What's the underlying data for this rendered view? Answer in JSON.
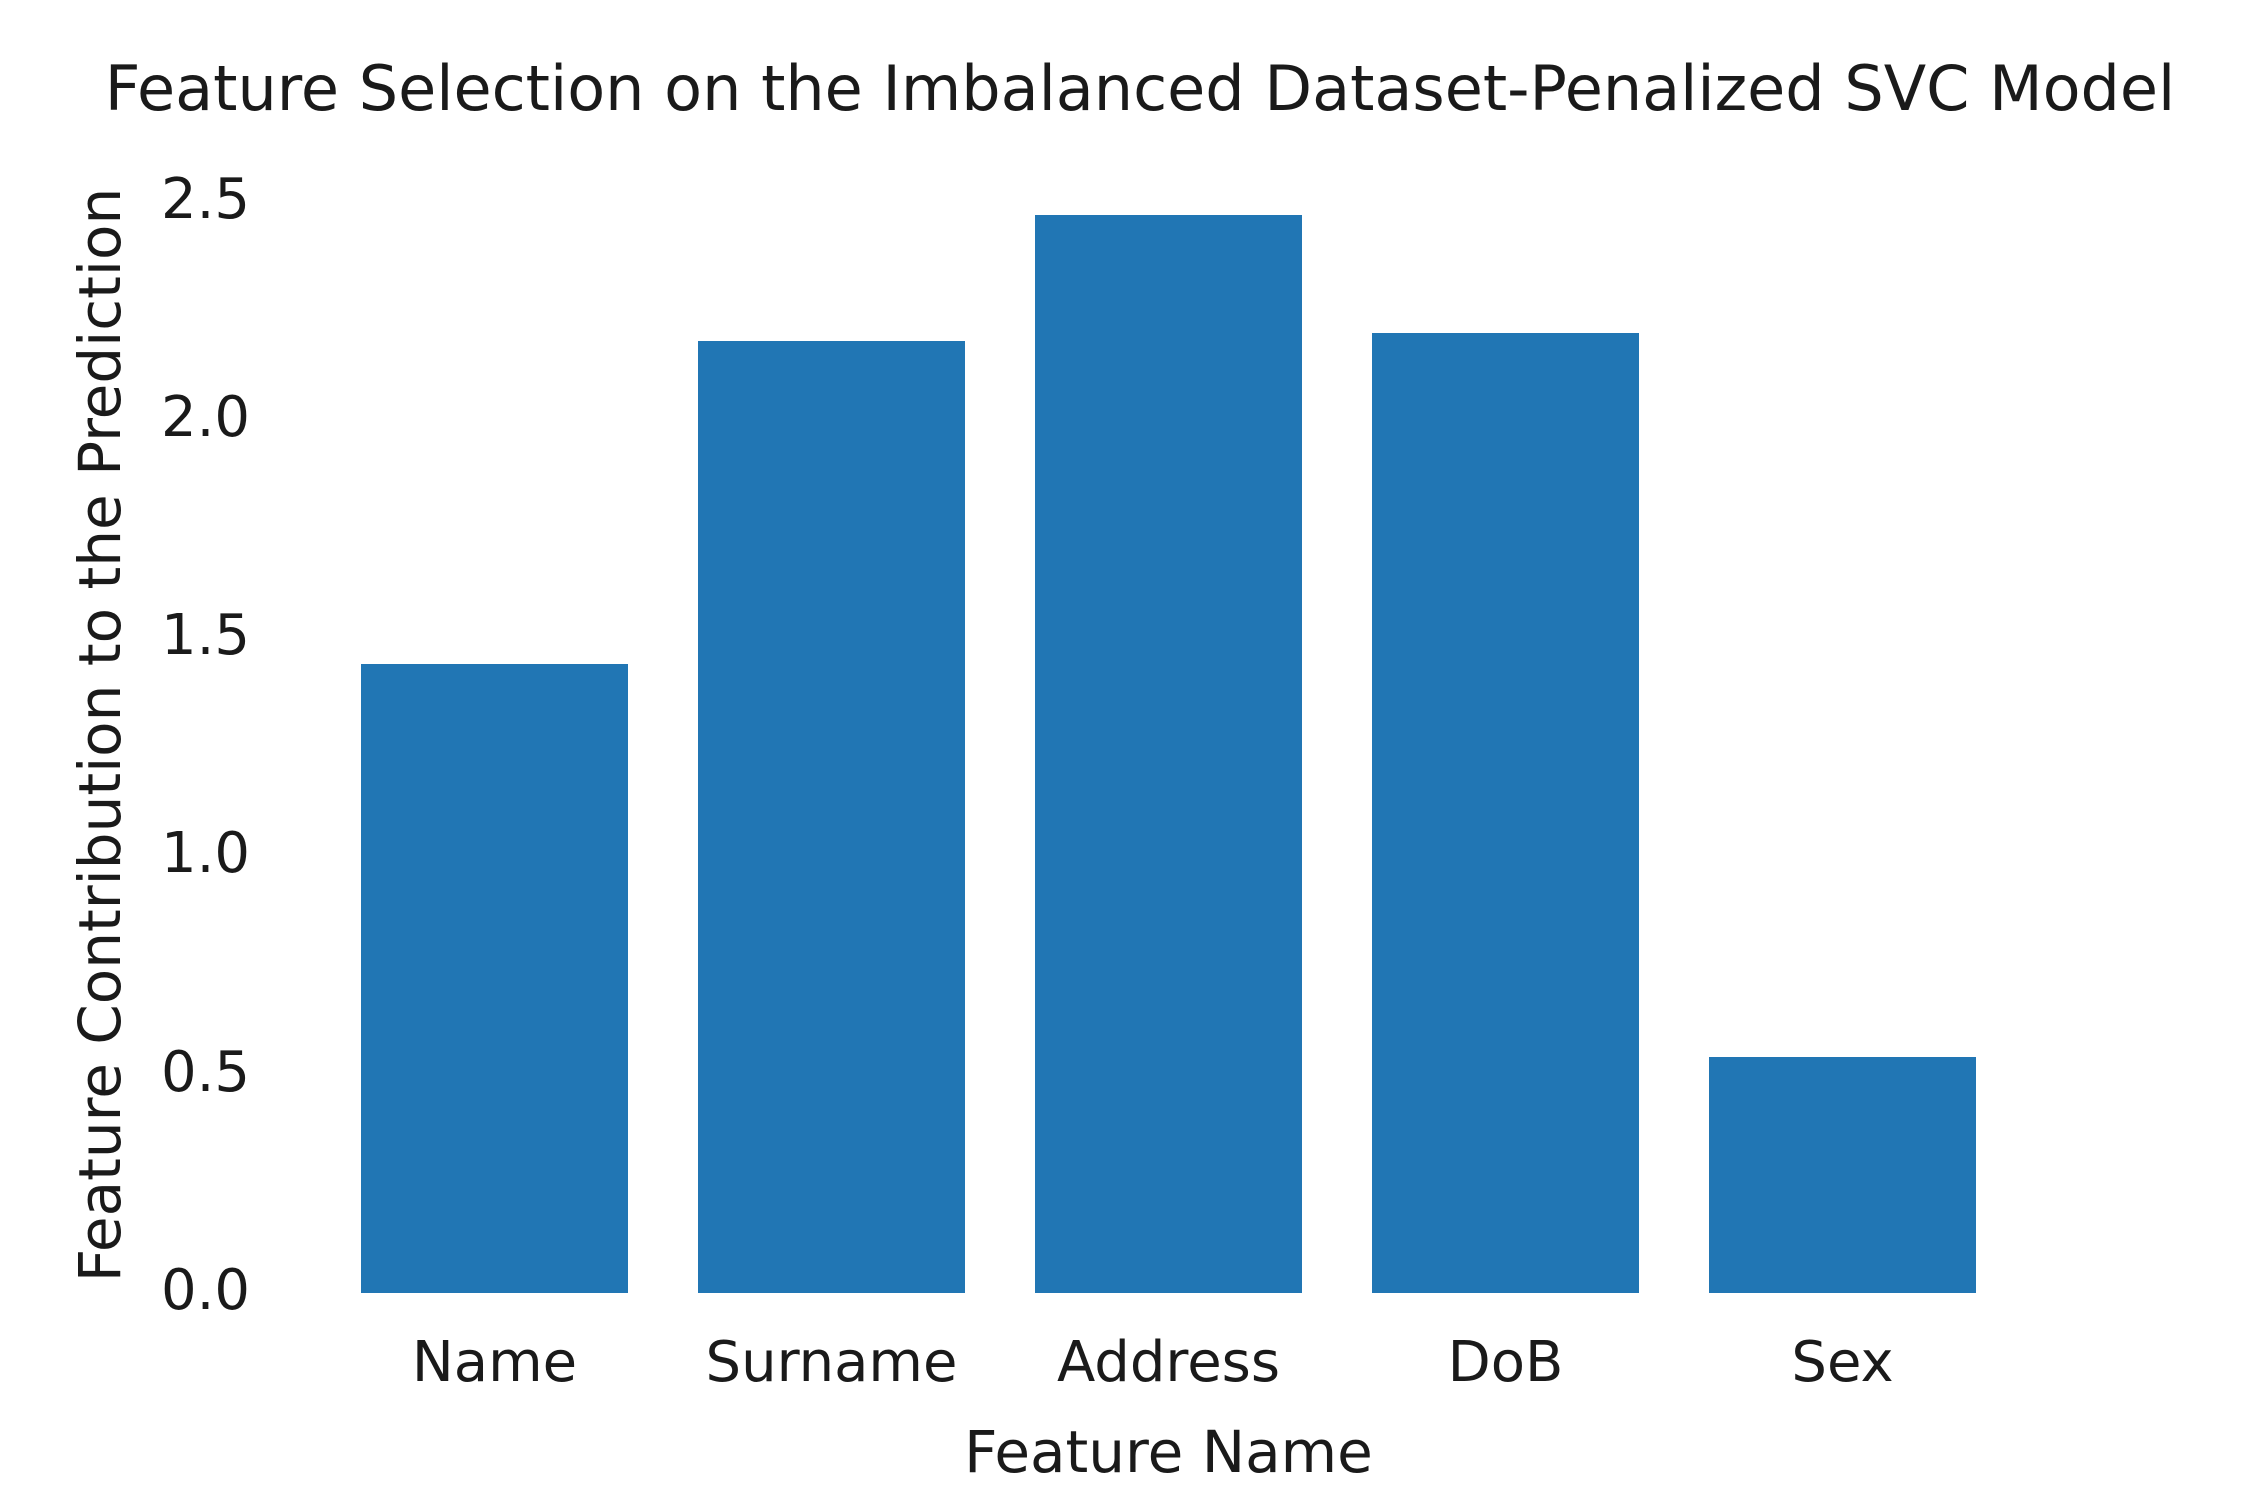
{
  "chart_data": {
    "type": "bar",
    "title": "Feature Selection on the Imbalanced Dataset-Penalized SVC Model",
    "xlabel": "Feature Name",
    "ylabel": "Feature Contribution to the Prediction",
    "categories": [
      "Name",
      "Surname",
      "Address",
      "DoB",
      "Sex"
    ],
    "values": [
      1.44,
      2.18,
      2.47,
      2.2,
      0.54
    ],
    "yticks": [
      "0.0",
      "0.5",
      "1.0",
      "1.5",
      "2.0",
      "2.5"
    ],
    "ylim": [
      0,
      2.6
    ],
    "grid": false,
    "legend": null,
    "spines_visible": false,
    "bar_width_fraction": 0.79,
    "colors": {
      "bar": "#2176b4",
      "text": "#1a1a1a",
      "background": "#ffffff"
    }
  }
}
